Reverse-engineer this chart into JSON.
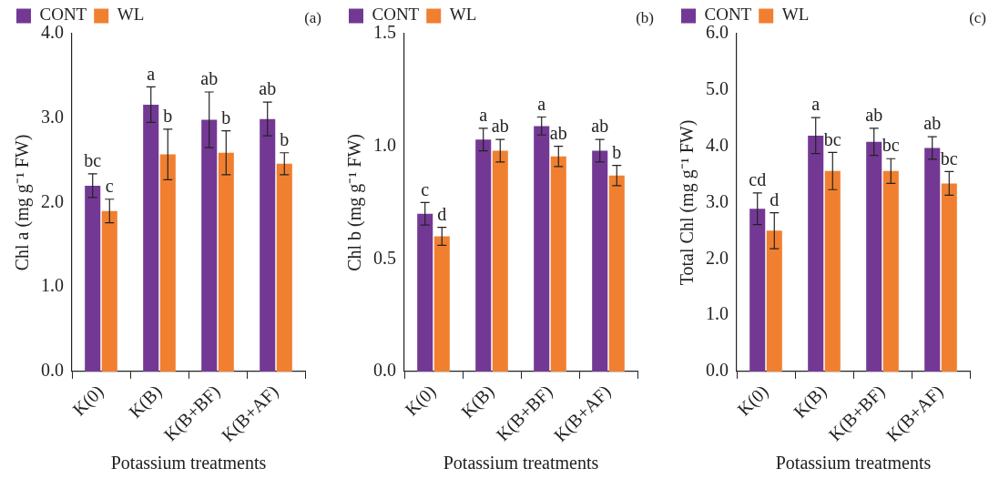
{
  "chart_data": [
    {
      "type": "bar",
      "title": "(a)",
      "xlabel": "Potassium treatments",
      "ylabel": "Chl a (mg g⁻¹ FW)",
      "categories": [
        "K(0)",
        "K(B)",
        "K(B+BF)",
        "K(B+AF)"
      ],
      "series": [
        {
          "name": "CONT",
          "color": "#733894",
          "values": [
            2.2,
            3.16,
            2.98,
            2.99
          ],
          "errors": [
            0.14,
            0.21,
            0.33,
            0.2
          ],
          "value_labels": [
            "bc",
            "a",
            "ab",
            "ab"
          ]
        },
        {
          "name": "WL",
          "color": "#f08030",
          "values": [
            1.9,
            2.57,
            2.59,
            2.46
          ],
          "errors": [
            0.14,
            0.3,
            0.26,
            0.13
          ],
          "value_labels": [
            "c",
            "b",
            "b",
            "b"
          ]
        }
      ],
      "ylim": [
        0,
        4
      ],
      "yticks": [
        {
          "value": 0,
          "label": "0.0"
        },
        {
          "value": 1,
          "label": "1.0"
        },
        {
          "value": 2,
          "label": "2.0"
        },
        {
          "value": 3,
          "label": "3.0"
        },
        {
          "value": 4,
          "label": "4.0"
        }
      ],
      "grid": false,
      "legend": "top left"
    },
    {
      "type": "bar",
      "title": "(b)",
      "xlabel": "Potassium treatments",
      "ylabel": "Chl b (mg g⁻¹ FW)",
      "categories": [
        "K(0)",
        "K(B)",
        "K(B+BF)",
        "K(B+AF)"
      ],
      "series": [
        {
          "name": "CONT",
          "color": "#733894",
          "values": [
            0.7,
            1.03,
            1.09,
            0.98
          ],
          "errors": [
            0.05,
            0.05,
            0.04,
            0.05
          ],
          "value_labels": [
            "c",
            "a",
            "a",
            "ab"
          ]
        },
        {
          "name": "WL",
          "color": "#f08030",
          "values": [
            0.6,
            0.98,
            0.955,
            0.87
          ],
          "errors": [
            0.04,
            0.05,
            0.045,
            0.045
          ],
          "value_labels": [
            "d",
            "ab",
            "ab",
            "b"
          ]
        }
      ],
      "ylim": [
        0,
        1.5
      ],
      "yticks": [
        {
          "value": 0,
          "label": "0.0"
        },
        0.5,
        {
          "value": 1,
          "label": "1.0"
        },
        1.5
      ],
      "grid": false,
      "legend": "top left"
    },
    {
      "type": "bar",
      "title": "(c)",
      "xlabel": "Potassium treatments",
      "ylabel": "Total Chl (mg g⁻¹ FW)",
      "categories": [
        "K(0)",
        "K(B)",
        "K(B+BF)",
        "K(B+AF)"
      ],
      "series": [
        {
          "name": "CONT",
          "color": "#733894",
          "values": [
            2.89,
            4.19,
            4.08,
            3.97
          ],
          "errors": [
            0.28,
            0.32,
            0.24,
            0.2
          ],
          "value_labels": [
            "cd",
            "a",
            "ab",
            "ab"
          ]
        },
        {
          "name": "WL",
          "color": "#f08030",
          "values": [
            2.5,
            3.56,
            3.56,
            3.34
          ],
          "errors": [
            0.32,
            0.33,
            0.22,
            0.21
          ],
          "value_labels": [
            "d",
            "bc",
            "bc",
            "bc"
          ]
        }
      ],
      "ylim": [
        0,
        6
      ],
      "yticks": [
        {
          "value": 0,
          "label": "0.0"
        },
        {
          "value": 1,
          "label": "1.0"
        },
        {
          "value": 2,
          "label": "2.0"
        },
        {
          "value": 3,
          "label": "3.0"
        },
        {
          "value": 4,
          "label": "4.0"
        },
        {
          "value": 5,
          "label": "5.0"
        },
        {
          "value": 6,
          "label": "6.0"
        }
      ],
      "grid": false,
      "legend": "top left"
    }
  ]
}
